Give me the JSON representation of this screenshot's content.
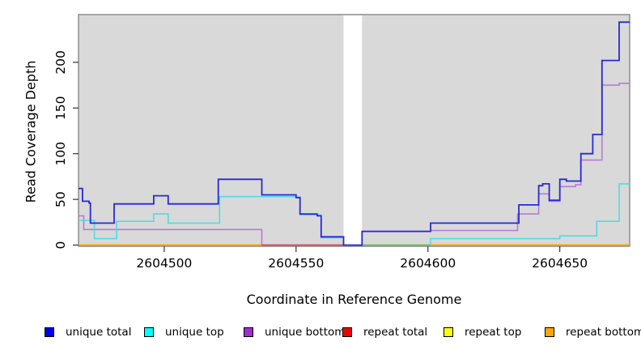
{
  "chart_data": {
    "type": "line",
    "style": "step-after",
    "title": "",
    "xlabel": "Coordinate in Reference Genome",
    "ylabel": "Read Coverage Depth",
    "x_ticks": [
      2604500,
      2604550,
      2604600,
      2604650
    ],
    "y_ticks": [
      0,
      50,
      100,
      150,
      200
    ],
    "xlim": [
      2604467.5,
      2604676.5
    ],
    "ylim": [
      0,
      245
    ],
    "grid": false,
    "plot_background": "#d9d9d9",
    "plot_border_color": "#808080",
    "gap_region": {
      "x_from": 2604568,
      "x_to": 2604575,
      "color": "#ffffff"
    },
    "legend_position": "bottom",
    "series": [
      {
        "name": "repeat total",
        "legend_color": "#ee0000",
        "line_color": "#cc2233",
        "points": [
          [
            2604467.5,
            0
          ],
          [
            2604676.5,
            0
          ]
        ]
      },
      {
        "name": "repeat top",
        "legend_color": "#ffff00",
        "line_color": "#f5e400",
        "points": [
          [
            2604467.5,
            0
          ],
          [
            2604676.5,
            0
          ]
        ]
      },
      {
        "name": "unique bottom",
        "legend_color": "#9932cc",
        "line_color": "#b57bd5",
        "points": [
          [
            2604467.5,
            32
          ],
          [
            2604469.5,
            17
          ],
          [
            2604537,
            0
          ],
          [
            2604575,
            15
          ],
          [
            2604601,
            16
          ],
          [
            2604634,
            34
          ],
          [
            2604642,
            56
          ],
          [
            2604646,
            48
          ],
          [
            2604650,
            64
          ],
          [
            2604656,
            66
          ],
          [
            2604658,
            93
          ],
          [
            2604666,
            175
          ],
          [
            2604672.5,
            177
          ],
          [
            2604676.5,
            177
          ]
        ]
      },
      {
        "name": "unique top",
        "legend_color": "#00ffff",
        "line_color": "#4fdce2",
        "points": [
          [
            2604467.5,
            27
          ],
          [
            2604473.5,
            7
          ],
          [
            2604482,
            26
          ],
          [
            2604496,
            34
          ],
          [
            2604501.5,
            24
          ],
          [
            2604521,
            53
          ],
          [
            2604550,
            52
          ],
          [
            2604551.5,
            33
          ],
          [
            2604559.5,
            8
          ],
          [
            2604568,
            0
          ],
          [
            2604601,
            7
          ],
          [
            2604650,
            10
          ],
          [
            2604664,
            26
          ],
          [
            2604672.5,
            67
          ],
          [
            2604676.5,
            67
          ]
        ]
      },
      {
        "name": "repeat bottom",
        "legend_color": "#ffa500",
        "line_color": "#ffa500",
        "points": [
          [
            2604467.5,
            0
          ],
          [
            2604676.5,
            0
          ]
        ]
      },
      {
        "name": "unique total",
        "legend_color": "#0000ee",
        "line_color": "#2929d6",
        "points": [
          [
            2604467.5,
            62
          ],
          [
            2604469,
            48
          ],
          [
            2604471.5,
            46
          ],
          [
            2604472,
            24
          ],
          [
            2604481,
            45
          ],
          [
            2604496,
            54
          ],
          [
            2604501.5,
            45
          ],
          [
            2604520.5,
            72
          ],
          [
            2604537,
            55
          ],
          [
            2604550,
            52
          ],
          [
            2604551.5,
            34
          ],
          [
            2604558,
            32
          ],
          [
            2604559.5,
            9
          ],
          [
            2604568,
            0
          ],
          [
            2604575,
            15
          ],
          [
            2604601,
            24
          ],
          [
            2604634.5,
            44
          ],
          [
            2604642,
            65
          ],
          [
            2604643.5,
            67
          ],
          [
            2604646,
            49
          ],
          [
            2604650,
            72
          ],
          [
            2604652.5,
            70
          ],
          [
            2604658,
            100
          ],
          [
            2604662.5,
            121
          ],
          [
            2604666,
            202
          ],
          [
            2604672.5,
            244
          ],
          [
            2604676.5,
            244
          ]
        ]
      }
    ],
    "baseline_overlays": [
      {
        "name": "baseline-crimson-segment",
        "color": "#ce5070",
        "x_from": 2604537,
        "x_to": 2604568,
        "value": 0
      },
      {
        "name": "baseline-green-segment",
        "color": "#6cc06c",
        "x_from": 2604575,
        "x_to": 2604601,
        "value": 0
      }
    ],
    "legend_order": [
      "unique total",
      "unique top",
      "unique bottom",
      "repeat total",
      "repeat top",
      "repeat bottom"
    ]
  }
}
